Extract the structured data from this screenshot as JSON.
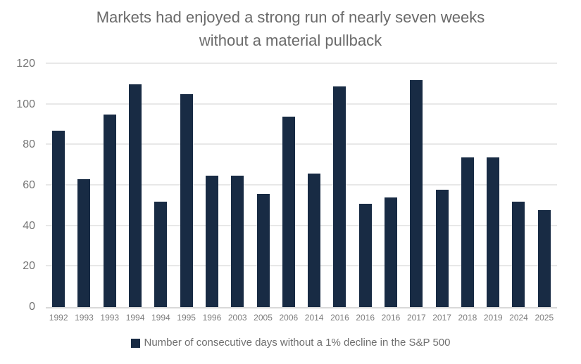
{
  "title": {
    "line1": "Markets had enjoyed a strong run of nearly seven weeks",
    "line2": "without a material pullback"
  },
  "legend": {
    "label": "Number of consecutive days without a 1% decline in the S&P 500"
  },
  "colors": {
    "bar": "#182b44",
    "grid": "#e8e8e8",
    "axis": "#d9d9d9",
    "title_text": "#6a6a6a",
    "y_tick_text": "#757575",
    "x_tick_text": "#7d7d7d",
    "legend_text": "#6f6f6f"
  },
  "chart_data": {
    "type": "bar",
    "title": "Markets had enjoyed a strong run of nearly seven weeks without a material pullback",
    "categories": [
      "1992",
      "1993",
      "1993",
      "1994",
      "1994",
      "1995",
      "1996",
      "2003",
      "2005",
      "2006",
      "2014",
      "2016",
      "2016",
      "2016",
      "2017",
      "2017",
      "2018",
      "2019",
      "2024",
      "2025"
    ],
    "values": [
      87,
      63,
      95,
      110,
      52,
      105,
      65,
      65,
      56,
      94,
      66,
      109,
      51,
      54,
      112,
      58,
      74,
      74,
      52,
      48
    ],
    "xlabel": "",
    "ylabel": "",
    "ylim": [
      0,
      120
    ],
    "yticks": [
      0,
      20,
      40,
      60,
      80,
      100,
      120
    ],
    "grid": true,
    "legend": [
      "Number of consecutive days without a 1% decline in the S&P 500"
    ],
    "legend_position": "bottom"
  }
}
